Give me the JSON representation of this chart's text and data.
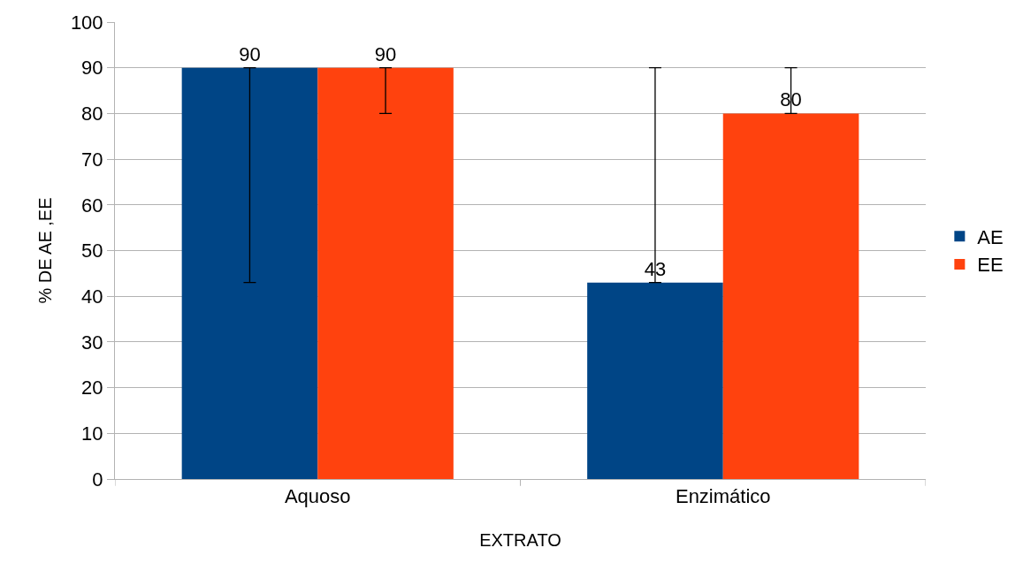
{
  "chart_data": {
    "type": "bar",
    "xlabel": "EXTRATO",
    "ylabel": "% DE AE ,EE",
    "categories": [
      "Aquoso",
      "Enzimático"
    ],
    "series": [
      {
        "name": "AE",
        "color": "#004586",
        "values": [
          90,
          43
        ],
        "errors": [
          [
            43,
            90
          ],
          [
            43,
            90
          ]
        ]
      },
      {
        "name": "EE",
        "color": "#ff420e",
        "values": [
          90,
          80
        ],
        "errors": [
          [
            80,
            90
          ],
          [
            80,
            90
          ]
        ]
      }
    ],
    "ylim": [
      0,
      100
    ],
    "yticks": [
      0,
      10,
      20,
      30,
      40,
      50,
      60,
      70,
      80,
      90,
      100
    ],
    "grid": "y",
    "legend": "right",
    "data_labels": true
  }
}
